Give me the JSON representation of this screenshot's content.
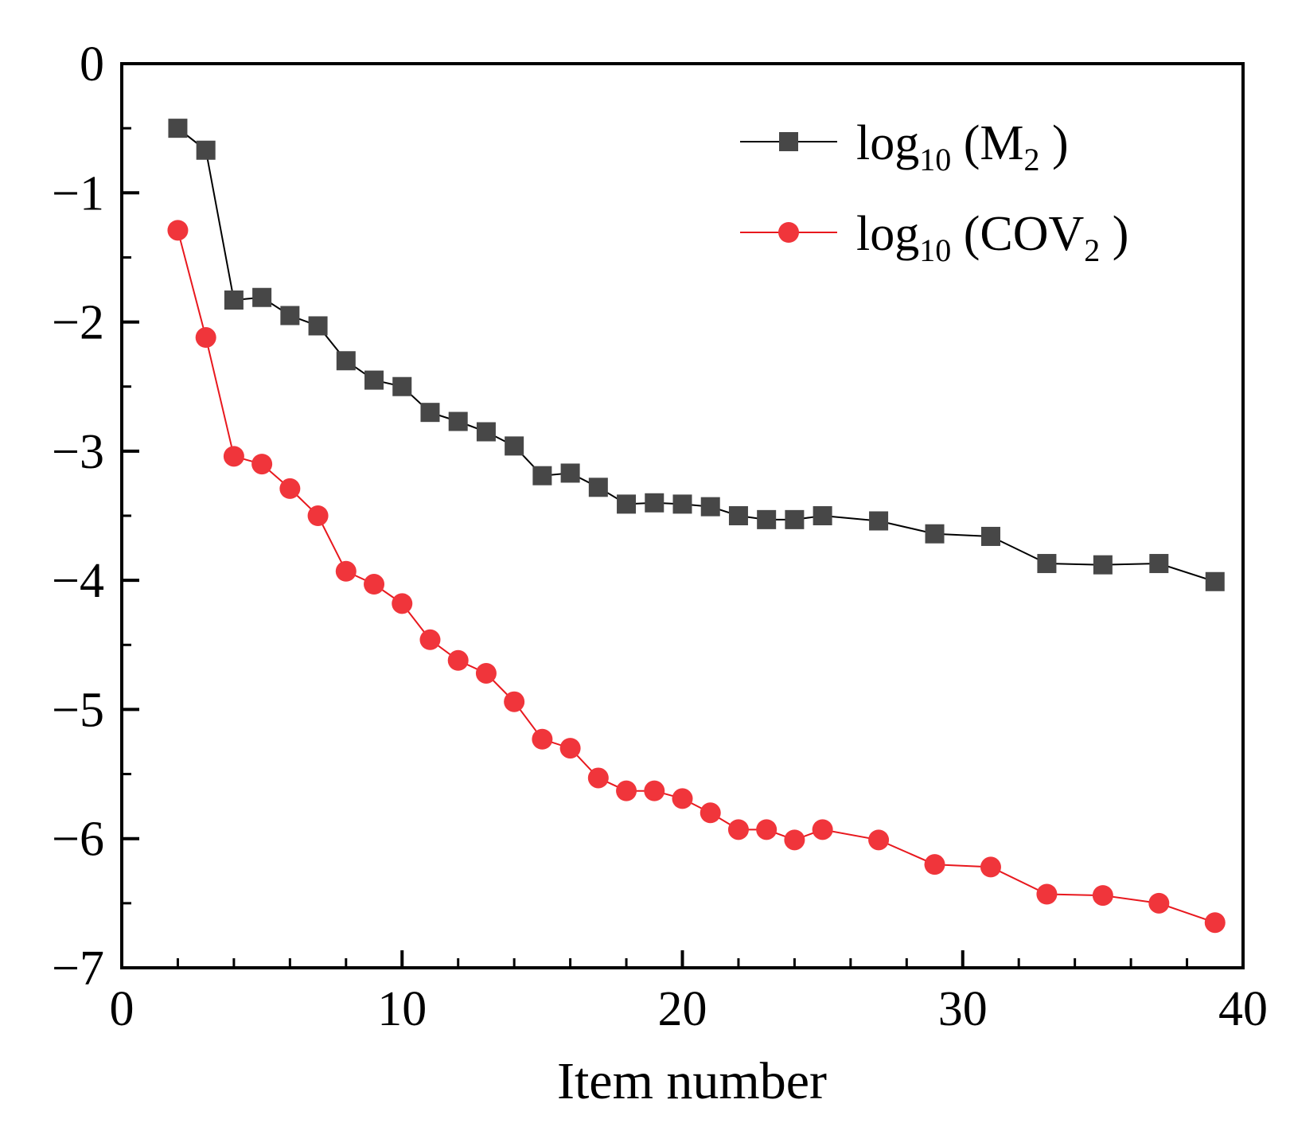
{
  "chart_data": {
    "type": "line",
    "title": "",
    "xlabel": "Item number",
    "ylabel": "",
    "xlim": [
      0,
      40
    ],
    "ylim": [
      -7,
      0
    ],
    "xticks": [
      0,
      10,
      20,
      30,
      40
    ],
    "yticks": [
      0,
      -1,
      -2,
      -3,
      -4,
      -5,
      -6,
      -7
    ],
    "xticks_minor": [
      2,
      4,
      6,
      8,
      12,
      14,
      16,
      18,
      22,
      24,
      26,
      28,
      32,
      34,
      36,
      38
    ],
    "yticks_minor": [
      -0.5,
      -1.5,
      -2.5,
      -3.5,
      -4.5,
      -5.5,
      -6.5
    ],
    "grid": false,
    "legend_position": "top-right",
    "series": [
      {
        "name": "log10(M2)",
        "legend_base": "log",
        "legend_sub": "10",
        "legend_open": "(",
        "legend_symbol": "M",
        "legend_symbol_sub": "2",
        "legend_close": ")",
        "color": "#474747",
        "line_color": "#000000",
        "marker": "square",
        "x": [
          2,
          3,
          4,
          5,
          6,
          7,
          8,
          9,
          10,
          11,
          12,
          13,
          14,
          15,
          16,
          17,
          18,
          19,
          20,
          21,
          22,
          23,
          24,
          25,
          27,
          29,
          31,
          33,
          35,
          37,
          39
        ],
        "y": [
          -0.5,
          -0.67,
          -1.83,
          -1.81,
          -1.95,
          -2.03,
          -2.3,
          -2.45,
          -2.5,
          -2.7,
          -2.77,
          -2.85,
          -2.96,
          -3.19,
          -3.17,
          -3.28,
          -3.41,
          -3.4,
          -3.41,
          -3.43,
          -3.5,
          -3.53,
          -3.53,
          -3.5,
          -3.54,
          -3.64,
          -3.66,
          -3.87,
          -3.88,
          -3.87,
          -4.01
        ]
      },
      {
        "name": "log10(COV2)",
        "legend_base": "log",
        "legend_sub": "10",
        "legend_open": "(",
        "legend_symbol": "COV",
        "legend_symbol_sub": "2",
        "legend_close": ")",
        "color": "#f0353b",
        "line_color": "#e8181e",
        "marker": "circle",
        "x": [
          2,
          3,
          4,
          5,
          6,
          7,
          8,
          9,
          10,
          11,
          12,
          13,
          14,
          15,
          16,
          17,
          18,
          19,
          20,
          21,
          22,
          23,
          24,
          25,
          27,
          29,
          31,
          33,
          35,
          37,
          39
        ],
        "y": [
          -1.29,
          -2.12,
          -3.04,
          -3.1,
          -3.29,
          -3.5,
          -3.93,
          -4.03,
          -4.18,
          -4.46,
          -4.62,
          -4.72,
          -4.94,
          -5.23,
          -5.3,
          -5.53,
          -5.63,
          -5.63,
          -5.69,
          -5.8,
          -5.93,
          -5.93,
          -6.01,
          -5.93,
          -6.01,
          -6.2,
          -6.22,
          -6.43,
          -6.44,
          -6.5,
          -6.65
        ]
      }
    ]
  }
}
